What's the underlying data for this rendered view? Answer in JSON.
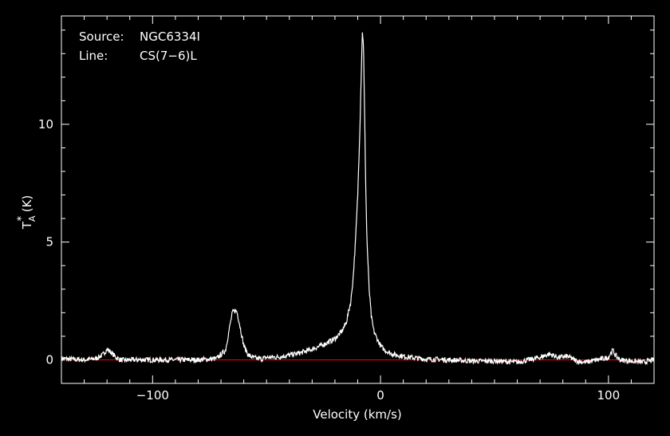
{
  "chart_data": {
    "type": "line",
    "xlabel": "Velocity (km/s)",
    "ylabel": "T_A^* (K)",
    "ylabel_main": "T",
    "ylabel_sub": "A",
    "ylabel_sup": "*",
    "ylabel_unit": " (K)",
    "xlim": [
      -140,
      120
    ],
    "ylim": [
      -1,
      14.6
    ],
    "x_ticks": [
      -100,
      0,
      100
    ],
    "x_tick_labels": [
      "−100",
      "0",
      "100"
    ],
    "y_ticks": [
      0,
      5,
      10
    ],
    "y_tick_labels": [
      "0",
      "5",
      "10"
    ],
    "baseline": 0,
    "annotations": {
      "source_label": "Source:",
      "source_value": "NGC6334I",
      "line_label": "Line:",
      "line_value": "CS(7−6)L"
    },
    "series": [
      {
        "color": "#ffffff",
        "x": [
          -140,
          -130,
          -125,
          -122,
          -120,
          -118,
          -116,
          -114,
          -112,
          -110,
          -100,
          -90,
          -80,
          -72,
          -68,
          -66,
          -65,
          -64,
          -63,
          -62,
          -60,
          -58,
          -56,
          -54,
          -52,
          -50,
          -45,
          -40,
          -35,
          -30,
          -25,
          -20,
          -17,
          -15,
          -13,
          -12,
          -11,
          -10,
          -9,
          -8.5,
          -8,
          -7.5,
          -7,
          -6.5,
          -6,
          -5,
          -4,
          -3,
          -2,
          0,
          2,
          5,
          10,
          15,
          20,
          30,
          40,
          50,
          60,
          70,
          74,
          78,
          82,
          86,
          90,
          95,
          100,
          101,
          102,
          103,
          105,
          110,
          115,
          120
        ],
        "y": [
          0.05,
          0.0,
          0.05,
          0.2,
          0.45,
          0.3,
          0.1,
          0.0,
          -0.02,
          0.0,
          0.0,
          0.0,
          0.0,
          0.05,
          0.4,
          1.5,
          2.0,
          2.1,
          2.05,
          1.6,
          0.6,
          0.2,
          0.1,
          0.05,
          0.05,
          0.1,
          0.12,
          0.2,
          0.3,
          0.45,
          0.65,
          0.9,
          1.2,
          1.6,
          2.5,
          3.5,
          5.0,
          7.0,
          10.0,
          12.0,
          13.9,
          13.5,
          10.5,
          7.5,
          5.2,
          3.0,
          1.8,
          1.25,
          1.0,
          0.6,
          0.4,
          0.25,
          0.15,
          0.08,
          0.03,
          0.0,
          -0.05,
          -0.05,
          -0.1,
          0.1,
          0.25,
          0.1,
          0.15,
          -0.05,
          -0.1,
          0.0,
          0.1,
          0.3,
          0.4,
          0.2,
          0.0,
          -0.05,
          -0.1,
          0.0
        ]
      },
      {
        "color": "#ff0000",
        "x": [
          -140,
          120
        ],
        "y": [
          0,
          0
        ]
      }
    ]
  }
}
